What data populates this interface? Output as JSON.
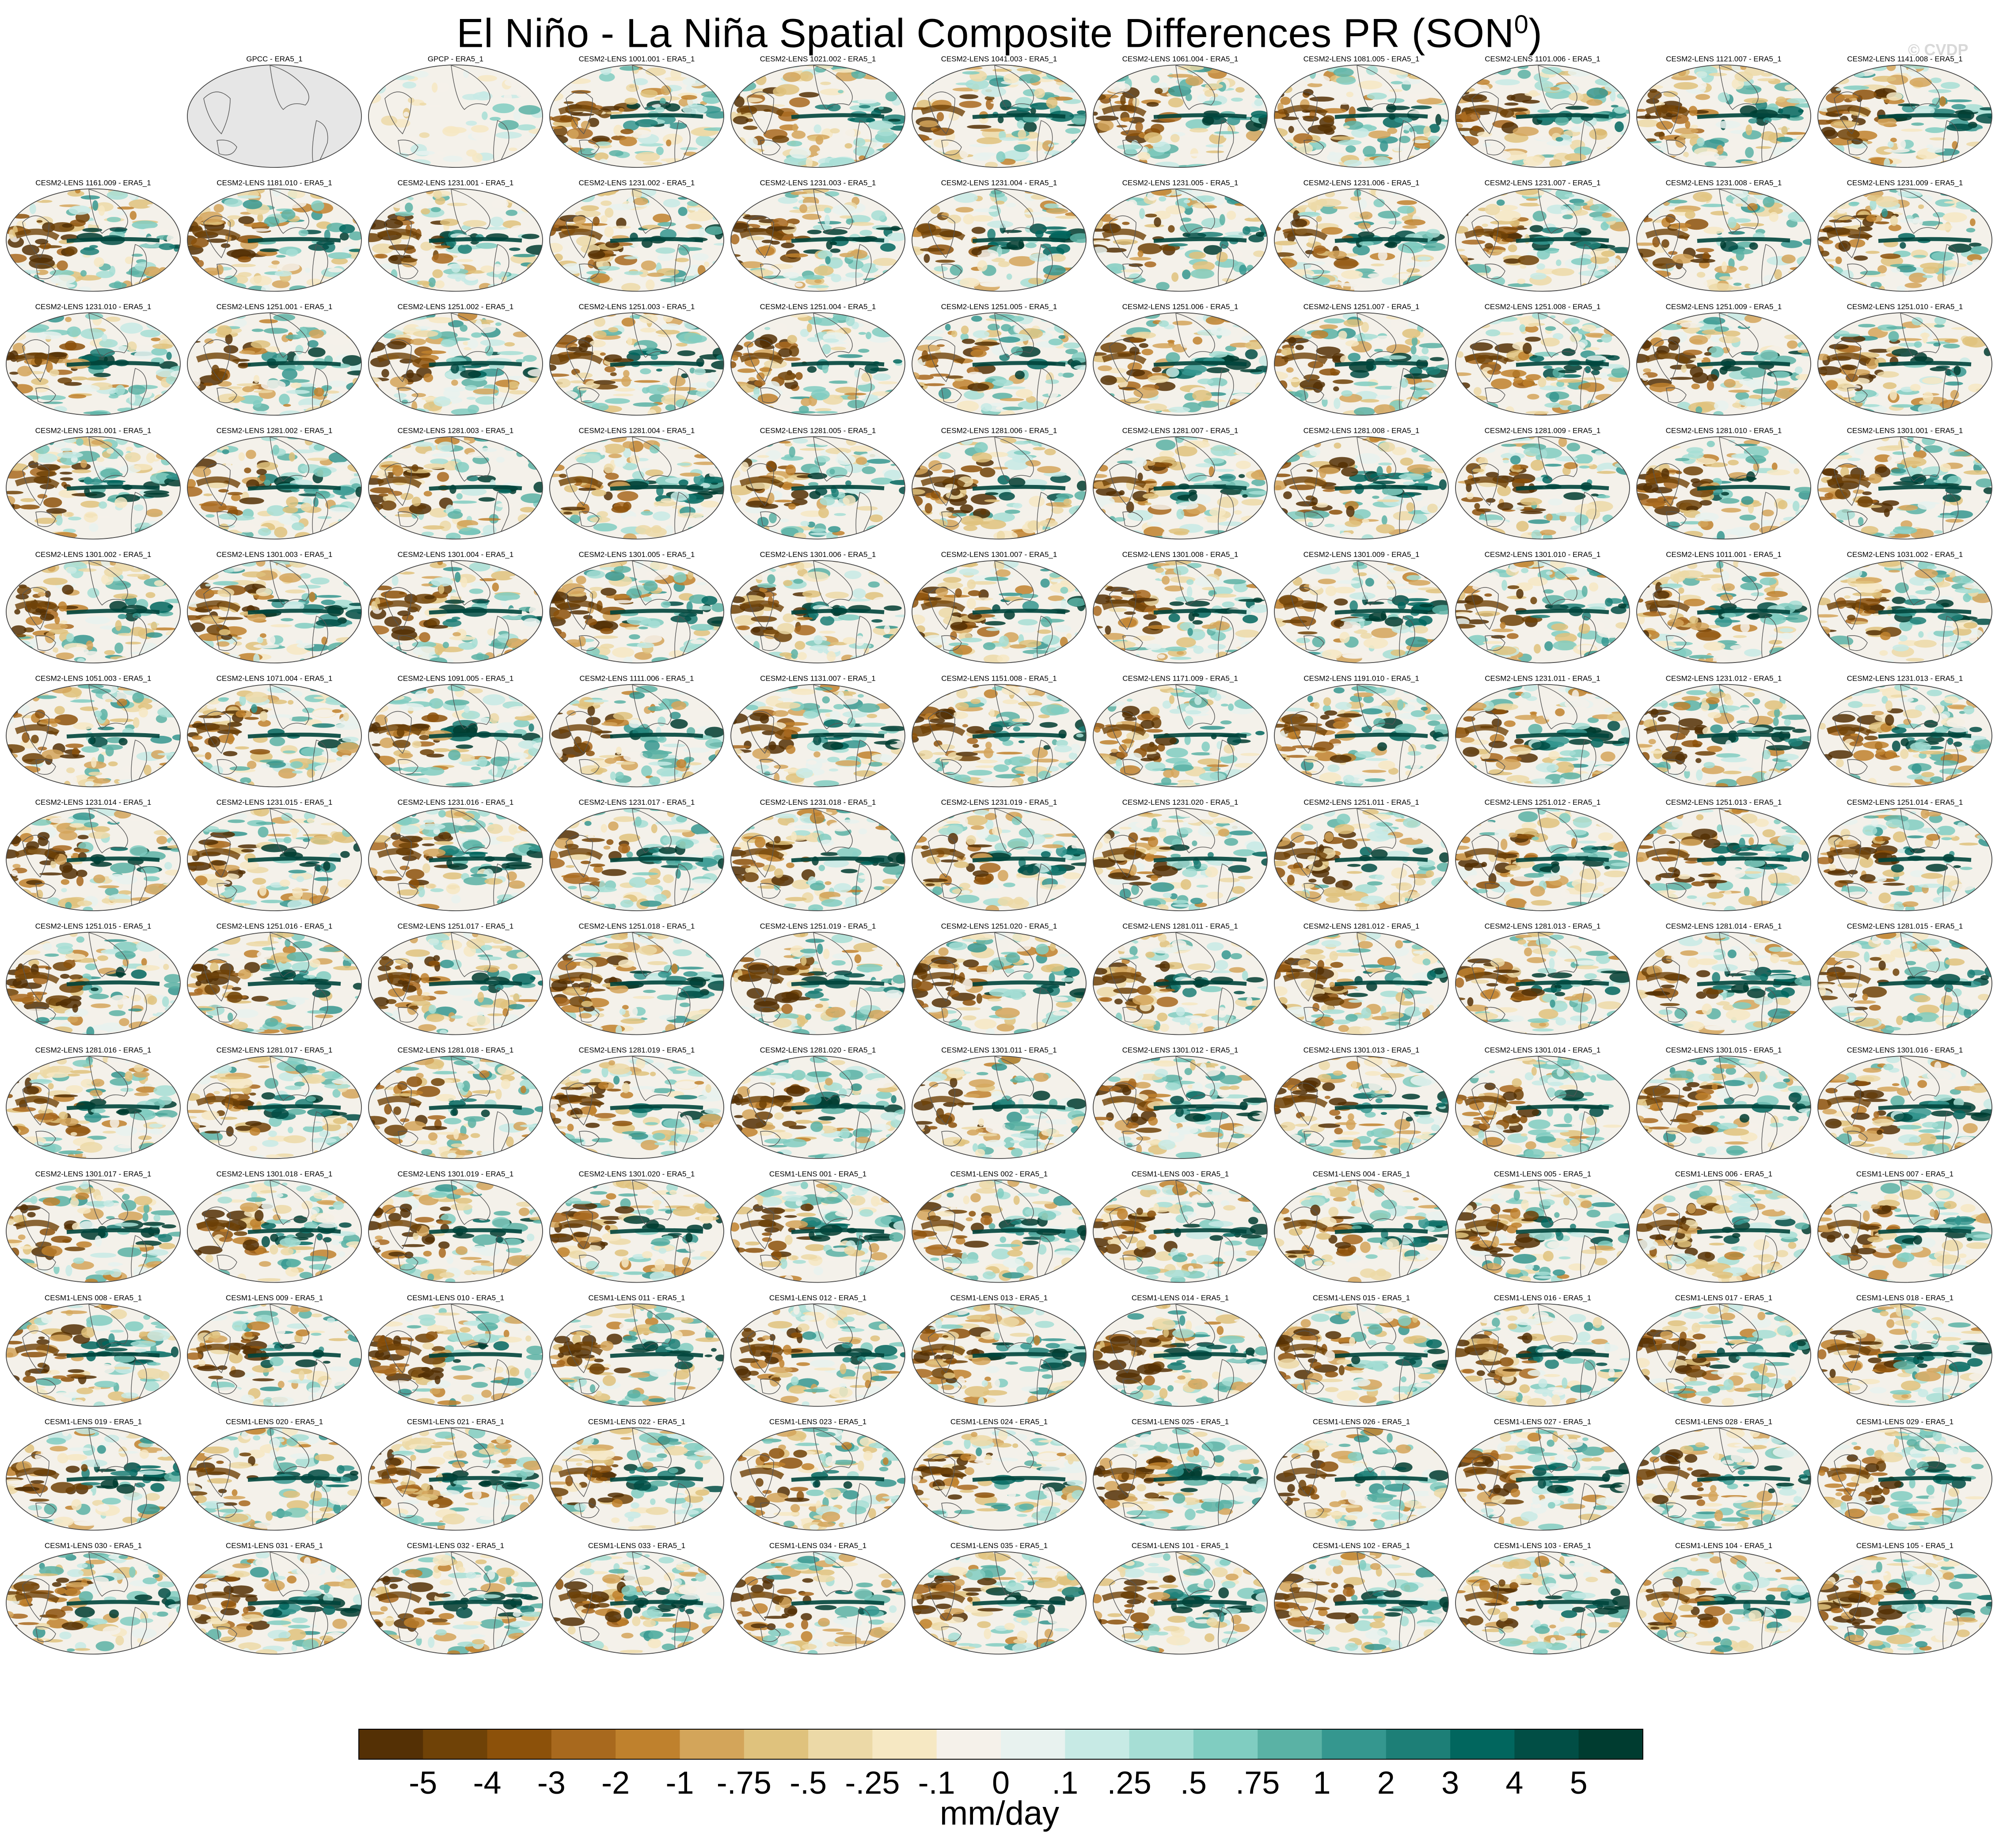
{
  "title": "El Niño - La Niña Spatial Composite Differences PR (SON",
  "title_superscript": "0",
  "title_close": ")",
  "watermark": "© CVDP",
  "panel_rows": 14,
  "panel_cols": 11,
  "panels": [
    {
      "label": "GPCC - ERA5_1",
      "kind": "obs-empty",
      "color": "#000000"
    },
    {
      "label": "GPCP - ERA5_1",
      "kind": "obs",
      "color": "#000000"
    },
    {
      "label": "CESM2-LENS 1001.001 - ERA5_1",
      "kind": "model",
      "color": "#1a6aa8"
    },
    {
      "label": "CESM2-LENS 1021.002 - ERA5_1",
      "kind": "model",
      "color": "#1a6aa8"
    },
    {
      "label": "CESM2-LENS 1041.003 - ERA5_1",
      "kind": "model",
      "color": "#1a6aa8"
    },
    {
      "label": "CESM2-LENS 1061.004 - ERA5_1",
      "kind": "model",
      "color": "#1a6aa8"
    },
    {
      "label": "CESM2-LENS 1081.005 - ERA5_1",
      "kind": "model",
      "color": "#1a6aa8"
    },
    {
      "label": "CESM2-LENS 1101.006 - ERA5_1",
      "kind": "model",
      "color": "#1a6aa8"
    },
    {
      "label": "CESM2-LENS 1121.007 - ERA5_1",
      "kind": "model",
      "color": "#1a6aa8"
    },
    {
      "label": "CESM2-LENS 1141.008 - ERA5_1",
      "kind": "model",
      "color": "#1a6aa8"
    },
    {
      "label": "CESM2-LENS 1161.009 - ERA5_1",
      "kind": "model",
      "color": "#1a6aa8"
    },
    {
      "label": "CESM2-LENS 1181.010 - ERA5_1",
      "kind": "model",
      "color": "#1a6aa8"
    },
    {
      "label": "CESM2-LENS 1231.001 - ERA5_1",
      "kind": "model",
      "color": "#1a6aa8"
    },
    {
      "label": "CESM2-LENS 1231.002 - ERA5_1",
      "kind": "model",
      "color": "#1a6aa8"
    },
    {
      "label": "CESM2-LENS 1231.003 - ERA5_1",
      "kind": "model",
      "color": "#1a6aa8"
    },
    {
      "label": "CESM2-LENS 1231.004 - ERA5_1",
      "kind": "model",
      "color": "#1a6aa8"
    },
    {
      "label": "CESM2-LENS 1231.005 - ERA5_1",
      "kind": "model",
      "color": "#1a6aa8"
    },
    {
      "label": "CESM2-LENS 1231.006 - ERA5_1",
      "kind": "model",
      "color": "#1a6aa8"
    },
    {
      "label": "CESM2-LENS 1231.007 - ERA5_1",
      "kind": "model",
      "color": "#1a6aa8"
    },
    {
      "label": "CESM2-LENS 1231.008 - ERA5_1",
      "kind": "model",
      "color": "#1a6aa8"
    },
    {
      "label": "CESM2-LENS 1231.009 - ERA5_1",
      "kind": "model",
      "color": "#1a6aa8"
    },
    {
      "label": "CESM2-LENS 1231.010 - ERA5_1",
      "kind": "model",
      "color": "#1a6aa8"
    },
    {
      "label": "CESM2-LENS 1251.001 - ERA5_1",
      "kind": "model",
      "color": "#1a6aa8"
    },
    {
      "label": "CESM2-LENS 1251.002 - ERA5_1",
      "kind": "model",
      "color": "#1a6aa8"
    },
    {
      "label": "CESM2-LENS 1251.003 - ERA5_1",
      "kind": "model",
      "color": "#1a6aa8"
    },
    {
      "label": "CESM2-LENS 1251.004 - ERA5_1",
      "kind": "model",
      "color": "#1a6aa8"
    },
    {
      "label": "CESM2-LENS 1251.005 - ERA5_1",
      "kind": "model",
      "color": "#1a6aa8"
    },
    {
      "label": "CESM2-LENS 1251.006 - ERA5_1",
      "kind": "model",
      "color": "#1a6aa8"
    },
    {
      "label": "CESM2-LENS 1251.007 - ERA5_1",
      "kind": "model",
      "color": "#1a6aa8"
    },
    {
      "label": "CESM2-LENS 1251.008 - ERA5_1",
      "kind": "model",
      "color": "#1a6aa8"
    },
    {
      "label": "CESM2-LENS 1251.009 - ERA5_1",
      "kind": "model",
      "color": "#1a6aa8"
    },
    {
      "label": "CESM2-LENS 1251.010 - ERA5_1",
      "kind": "model",
      "color": "#1a6aa8"
    },
    {
      "label": "CESM2-LENS 1281.001 - ERA5_1",
      "kind": "model",
      "color": "#1a6aa8"
    },
    {
      "label": "CESM2-LENS 1281.002 - ERA5_1",
      "kind": "model",
      "color": "#1a6aa8"
    },
    {
      "label": "CESM2-LENS 1281.003 - ERA5_1",
      "kind": "model",
      "color": "#1a6aa8"
    },
    {
      "label": "CESM2-LENS 1281.004 - ERA5_1",
      "kind": "model",
      "color": "#1a6aa8"
    },
    {
      "label": "CESM2-LENS 1281.005 - ERA5_1",
      "kind": "model",
      "color": "#1a6aa8"
    },
    {
      "label": "CESM2-LENS 1281.006 - ERA5_1",
      "kind": "model",
      "color": "#1a6aa8"
    },
    {
      "label": "CESM2-LENS 1281.007 - ERA5_1",
      "kind": "model",
      "color": "#1a6aa8"
    },
    {
      "label": "CESM2-LENS 1281.008 - ERA5_1",
      "kind": "model",
      "color": "#1a6aa8"
    },
    {
      "label": "CESM2-LENS 1281.009 - ERA5_1",
      "kind": "model",
      "color": "#1a6aa8"
    },
    {
      "label": "CESM2-LENS 1281.010 - ERA5_1",
      "kind": "model",
      "color": "#1a6aa8"
    },
    {
      "label": "CESM2-LENS 1301.001 - ERA5_1",
      "kind": "model",
      "color": "#1a6aa8"
    },
    {
      "label": "CESM2-LENS 1301.002 - ERA5_1",
      "kind": "model",
      "color": "#1a6aa8"
    },
    {
      "label": "CESM2-LENS 1301.003 - ERA5_1",
      "kind": "model",
      "color": "#1a6aa8"
    },
    {
      "label": "CESM2-LENS 1301.004 - ERA5_1",
      "kind": "model",
      "color": "#1a6aa8"
    },
    {
      "label": "CESM2-LENS 1301.005 - ERA5_1",
      "kind": "model",
      "color": "#1a6aa8"
    },
    {
      "label": "CESM2-LENS 1301.006 - ERA5_1",
      "kind": "model",
      "color": "#1a6aa8"
    },
    {
      "label": "CESM2-LENS 1301.007 - ERA5_1",
      "kind": "model",
      "color": "#1a6aa8"
    },
    {
      "label": "CESM2-LENS 1301.008 - ERA5_1",
      "kind": "model",
      "color": "#1a6aa8"
    },
    {
      "label": "CESM2-LENS 1301.009 - ERA5_1",
      "kind": "model",
      "color": "#1a6aa8"
    },
    {
      "label": "CESM2-LENS 1301.010 - ERA5_1",
      "kind": "model",
      "color": "#1a6aa8"
    },
    {
      "label": "CESM2-LENS 1011.001 - ERA5_1",
      "kind": "model",
      "color": "#7a7a55"
    },
    {
      "label": "CESM2-LENS 1031.002 - ERA5_1",
      "kind": "model",
      "color": "#7a7a55"
    },
    {
      "label": "CESM2-LENS 1051.003 - ERA5_1",
      "kind": "model",
      "color": "#7a7a55"
    },
    {
      "label": "CESM2-LENS 1071.004 - ERA5_1",
      "kind": "model",
      "color": "#7a7a55"
    },
    {
      "label": "CESM2-LENS 1091.005 - ERA5_1",
      "kind": "model",
      "color": "#7a7a55"
    },
    {
      "label": "CESM2-LENS 1111.006 - ERA5_1",
      "kind": "model",
      "color": "#7a7a55"
    },
    {
      "label": "CESM2-LENS 1131.007 - ERA5_1",
      "kind": "model",
      "color": "#7a7a55"
    },
    {
      "label": "CESM2-LENS 1151.008 - ERA5_1",
      "kind": "model",
      "color": "#7a7a55"
    },
    {
      "label": "CESM2-LENS 1171.009 - ERA5_1",
      "kind": "model",
      "color": "#7a7a55"
    },
    {
      "label": "CESM2-LENS 1191.010 - ERA5_1",
      "kind": "model",
      "color": "#7a7a55"
    },
    {
      "label": "CESM2-LENS 1231.011 - ERA5_1",
      "kind": "model",
      "color": "#7a7a55"
    },
    {
      "label": "CESM2-LENS 1231.012 - ERA5_1",
      "kind": "model",
      "color": "#7a7a55"
    },
    {
      "label": "CESM2-LENS 1231.013 - ERA5_1",
      "kind": "model",
      "color": "#7a7a55"
    },
    {
      "label": "CESM2-LENS 1231.014 - ERA5_1",
      "kind": "model",
      "color": "#7a7a55"
    },
    {
      "label": "CESM2-LENS 1231.015 - ERA5_1",
      "kind": "model",
      "color": "#7a7a55"
    },
    {
      "label": "CESM2-LENS 1231.016 - ERA5_1",
      "kind": "model",
      "color": "#7a7a55"
    },
    {
      "label": "CESM2-LENS 1231.017 - ERA5_1",
      "kind": "model",
      "color": "#7a7a55"
    },
    {
      "label": "CESM2-LENS 1231.018 - ERA5_1",
      "kind": "model",
      "color": "#7a7a55"
    },
    {
      "label": "CESM2-LENS 1231.019 - ERA5_1",
      "kind": "model",
      "color": "#7a7a55"
    },
    {
      "label": "CESM2-LENS 1231.020 - ERA5_1",
      "kind": "model",
      "color": "#7a7a55"
    },
    {
      "label": "CESM2-LENS 1251.011 - ERA5_1",
      "kind": "model",
      "color": "#7a7a55"
    },
    {
      "label": "CESM2-LENS 1251.012 - ERA5_1",
      "kind": "model",
      "color": "#7a7a55"
    },
    {
      "label": "CESM2-LENS 1251.013 - ERA5_1",
      "kind": "model",
      "color": "#7a7a55"
    },
    {
      "label": "CESM2-LENS 1251.014 - ERA5_1",
      "kind": "model",
      "color": "#7a7a55"
    },
    {
      "label": "CESM2-LENS 1251.015 - ERA5_1",
      "kind": "model",
      "color": "#7a7a55"
    },
    {
      "label": "CESM2-LENS 1251.016 - ERA5_1",
      "kind": "model",
      "color": "#7a7a55"
    },
    {
      "label": "CESM2-LENS 1251.017 - ERA5_1",
      "kind": "model",
      "color": "#7a7a55"
    },
    {
      "label": "CESM2-LENS 1251.018 - ERA5_1",
      "kind": "model",
      "color": "#7a7a55"
    },
    {
      "label": "CESM2-LENS 1251.019 - ERA5_1",
      "kind": "model",
      "color": "#7a7a55"
    },
    {
      "label": "CESM2-LENS 1251.020 - ERA5_1",
      "kind": "model",
      "color": "#7a7a55"
    },
    {
      "label": "CESM2-LENS 1281.011 - ERA5_1",
      "kind": "model",
      "color": "#7a7a55"
    },
    {
      "label": "CESM2-LENS 1281.012 - ERA5_1",
      "kind": "model",
      "color": "#7a7a55"
    },
    {
      "label": "CESM2-LENS 1281.013 - ERA5_1",
      "kind": "model",
      "color": "#7a7a55"
    },
    {
      "label": "CESM2-LENS 1281.014 - ERA5_1",
      "kind": "model",
      "color": "#7a7a55"
    },
    {
      "label": "CESM2-LENS 1281.015 - ERA5_1",
      "kind": "model",
      "color": "#7a7a55"
    },
    {
      "label": "CESM2-LENS 1281.016 - ERA5_1",
      "kind": "model",
      "color": "#7a7a55"
    },
    {
      "label": "CESM2-LENS 1281.017 - ERA5_1",
      "kind": "model",
      "color": "#7a7a55"
    },
    {
      "label": "CESM2-LENS 1281.018 - ERA5_1",
      "kind": "model",
      "color": "#7a7a55"
    },
    {
      "label": "CESM2-LENS 1281.019 - ERA5_1",
      "kind": "model",
      "color": "#7a7a55"
    },
    {
      "label": "CESM2-LENS 1281.020 - ERA5_1",
      "kind": "model",
      "color": "#7a7a55"
    },
    {
      "label": "CESM2-LENS 1301.011 - ERA5_1",
      "kind": "model",
      "color": "#7a7a55"
    },
    {
      "label": "CESM2-LENS 1301.012 - ERA5_1",
      "kind": "model",
      "color": "#7a7a55"
    },
    {
      "label": "CESM2-LENS 1301.013 - ERA5_1",
      "kind": "model",
      "color": "#7a7a55"
    },
    {
      "label": "CESM2-LENS 1301.014 - ERA5_1",
      "kind": "model",
      "color": "#7a7a55"
    },
    {
      "label": "CESM2-LENS 1301.015 - ERA5_1",
      "kind": "model",
      "color": "#7a7a55"
    },
    {
      "label": "CESM2-LENS 1301.016 - ERA5_1",
      "kind": "model",
      "color": "#7a7a55"
    },
    {
      "label": "CESM2-LENS 1301.017 - ERA5_1",
      "kind": "model",
      "color": "#7a7a55"
    },
    {
      "label": "CESM2-LENS 1301.018 - ERA5_1",
      "kind": "model",
      "color": "#7a7a55"
    },
    {
      "label": "CESM2-LENS 1301.019 - ERA5_1",
      "kind": "model",
      "color": "#7a7a55"
    },
    {
      "label": "CESM2-LENS 1301.020 - ERA5_1",
      "kind": "model",
      "color": "#7a7a55"
    },
    {
      "label": "CESM1-LENS 001 - ERA5_1",
      "kind": "model",
      "color": "#d6b25a"
    },
    {
      "label": "CESM1-LENS 002 - ERA5_1",
      "kind": "model",
      "color": "#d6b25a"
    },
    {
      "label": "CESM1-LENS 003 - ERA5_1",
      "kind": "model",
      "color": "#d6b25a"
    },
    {
      "label": "CESM1-LENS 004 - ERA5_1",
      "kind": "model",
      "color": "#d6b25a"
    },
    {
      "label": "CESM1-LENS 005 - ERA5_1",
      "kind": "model",
      "color": "#d6b25a"
    },
    {
      "label": "CESM1-LENS 006 - ERA5_1",
      "kind": "model",
      "color": "#d6b25a"
    },
    {
      "label": "CESM1-LENS 007 - ERA5_1",
      "kind": "model",
      "color": "#d6b25a"
    },
    {
      "label": "CESM1-LENS 008 - ERA5_1",
      "kind": "model",
      "color": "#d6b25a"
    },
    {
      "label": "CESM1-LENS 009 - ERA5_1",
      "kind": "model",
      "color": "#d6b25a"
    },
    {
      "label": "CESM1-LENS 010 - ERA5_1",
      "kind": "model",
      "color": "#d6b25a"
    },
    {
      "label": "CESM1-LENS 011 - ERA5_1",
      "kind": "model",
      "color": "#d6b25a"
    },
    {
      "label": "CESM1-LENS 012 - ERA5_1",
      "kind": "model",
      "color": "#d6b25a"
    },
    {
      "label": "CESM1-LENS 013 - ERA5_1",
      "kind": "model",
      "color": "#d6b25a"
    },
    {
      "label": "CESM1-LENS 014 - ERA5_1",
      "kind": "model",
      "color": "#d6b25a"
    },
    {
      "label": "CESM1-LENS 015 - ERA5_1",
      "kind": "model",
      "color": "#d6b25a"
    },
    {
      "label": "CESM1-LENS 016 - ERA5_1",
      "kind": "model",
      "color": "#d6b25a"
    },
    {
      "label": "CESM1-LENS 017 - ERA5_1",
      "kind": "model",
      "color": "#d6b25a"
    },
    {
      "label": "CESM1-LENS 018 - ERA5_1",
      "kind": "model",
      "color": "#d6b25a"
    },
    {
      "label": "CESM1-LENS 019 - ERA5_1",
      "kind": "model",
      "color": "#d6b25a"
    },
    {
      "label": "CESM1-LENS 020 - ERA5_1",
      "kind": "model",
      "color": "#d6b25a"
    },
    {
      "label": "CESM1-LENS 021 - ERA5_1",
      "kind": "model",
      "color": "#d6b25a"
    },
    {
      "label": "CESM1-LENS 022 - ERA5_1",
      "kind": "model",
      "color": "#d6b25a"
    },
    {
      "label": "CESM1-LENS 023 - ERA5_1",
      "kind": "model",
      "color": "#d6b25a"
    },
    {
      "label": "CESM1-LENS 024 - ERA5_1",
      "kind": "model",
      "color": "#d6b25a"
    },
    {
      "label": "CESM1-LENS 025 - ERA5_1",
      "kind": "model",
      "color": "#d6b25a"
    },
    {
      "label": "CESM1-LENS 026 - ERA5_1",
      "kind": "model",
      "color": "#d6b25a"
    },
    {
      "label": "CESM1-LENS 027 - ERA5_1",
      "kind": "model",
      "color": "#d6b25a"
    },
    {
      "label": "CESM1-LENS 028 - ERA5_1",
      "kind": "model",
      "color": "#d6b25a"
    },
    {
      "label": "CESM1-LENS 029 - ERA5_1",
      "kind": "model",
      "color": "#d6b25a"
    },
    {
      "label": "CESM1-LENS 030 - ERA5_1",
      "kind": "model",
      "color": "#d6b25a"
    },
    {
      "label": "CESM1-LENS 031 - ERA5_1",
      "kind": "model",
      "color": "#d6b25a"
    },
    {
      "label": "CESM1-LENS 032 - ERA5_1",
      "kind": "model",
      "color": "#d6b25a"
    },
    {
      "label": "CESM1-LENS 033 - ERA5_1",
      "kind": "model",
      "color": "#d6b25a"
    },
    {
      "label": "CESM1-LENS 034 - ERA5_1",
      "kind": "model",
      "color": "#d6b25a"
    },
    {
      "label": "CESM1-LENS 035 - ERA5_1",
      "kind": "model",
      "color": "#d6b25a"
    },
    {
      "label": "CESM1-LENS 101 - ERA5_1",
      "kind": "model",
      "color": "#d6b25a"
    },
    {
      "label": "CESM1-LENS 102 - ERA5_1",
      "kind": "model",
      "color": "#d6b25a"
    },
    {
      "label": "CESM1-LENS 103 - ERA5_1",
      "kind": "model",
      "color": "#d6b25a"
    },
    {
      "label": "CESM1-LENS 104 - ERA5_1",
      "kind": "model",
      "color": "#d6b25a"
    },
    {
      "label": "CESM1-LENS 105 - ERA5_1",
      "kind": "model",
      "color": "#d6b25a"
    }
  ],
  "chart_data": {
    "type": "heatmap",
    "title": "El Niño - La Niña Spatial Composite Differences PR (SON0)",
    "colorbar": {
      "label": "mm/day",
      "ticks": [
        "-5",
        "-4",
        "-3",
        "-2",
        "-1",
        "-.75",
        "-.5",
        "-.25",
        "-.1",
        "0",
        ".1",
        ".25",
        ".5",
        ".75",
        "1",
        "2",
        "3",
        "4",
        "5"
      ],
      "colors": [
        "#543005",
        "#6f4207",
        "#8c510a",
        "#a8691e",
        "#bf812d",
        "#d3a55a",
        "#dfc27d",
        "#ecd9a7",
        "#f6e8c3",
        "#f5f1ea",
        "#e8f2ef",
        "#c7eae5",
        "#a6ded5",
        "#80cdc1",
        "#5ab2a5",
        "#35978f",
        "#1d7f77",
        "#01665e",
        "#014e45",
        "#003c30"
      ]
    }
  }
}
